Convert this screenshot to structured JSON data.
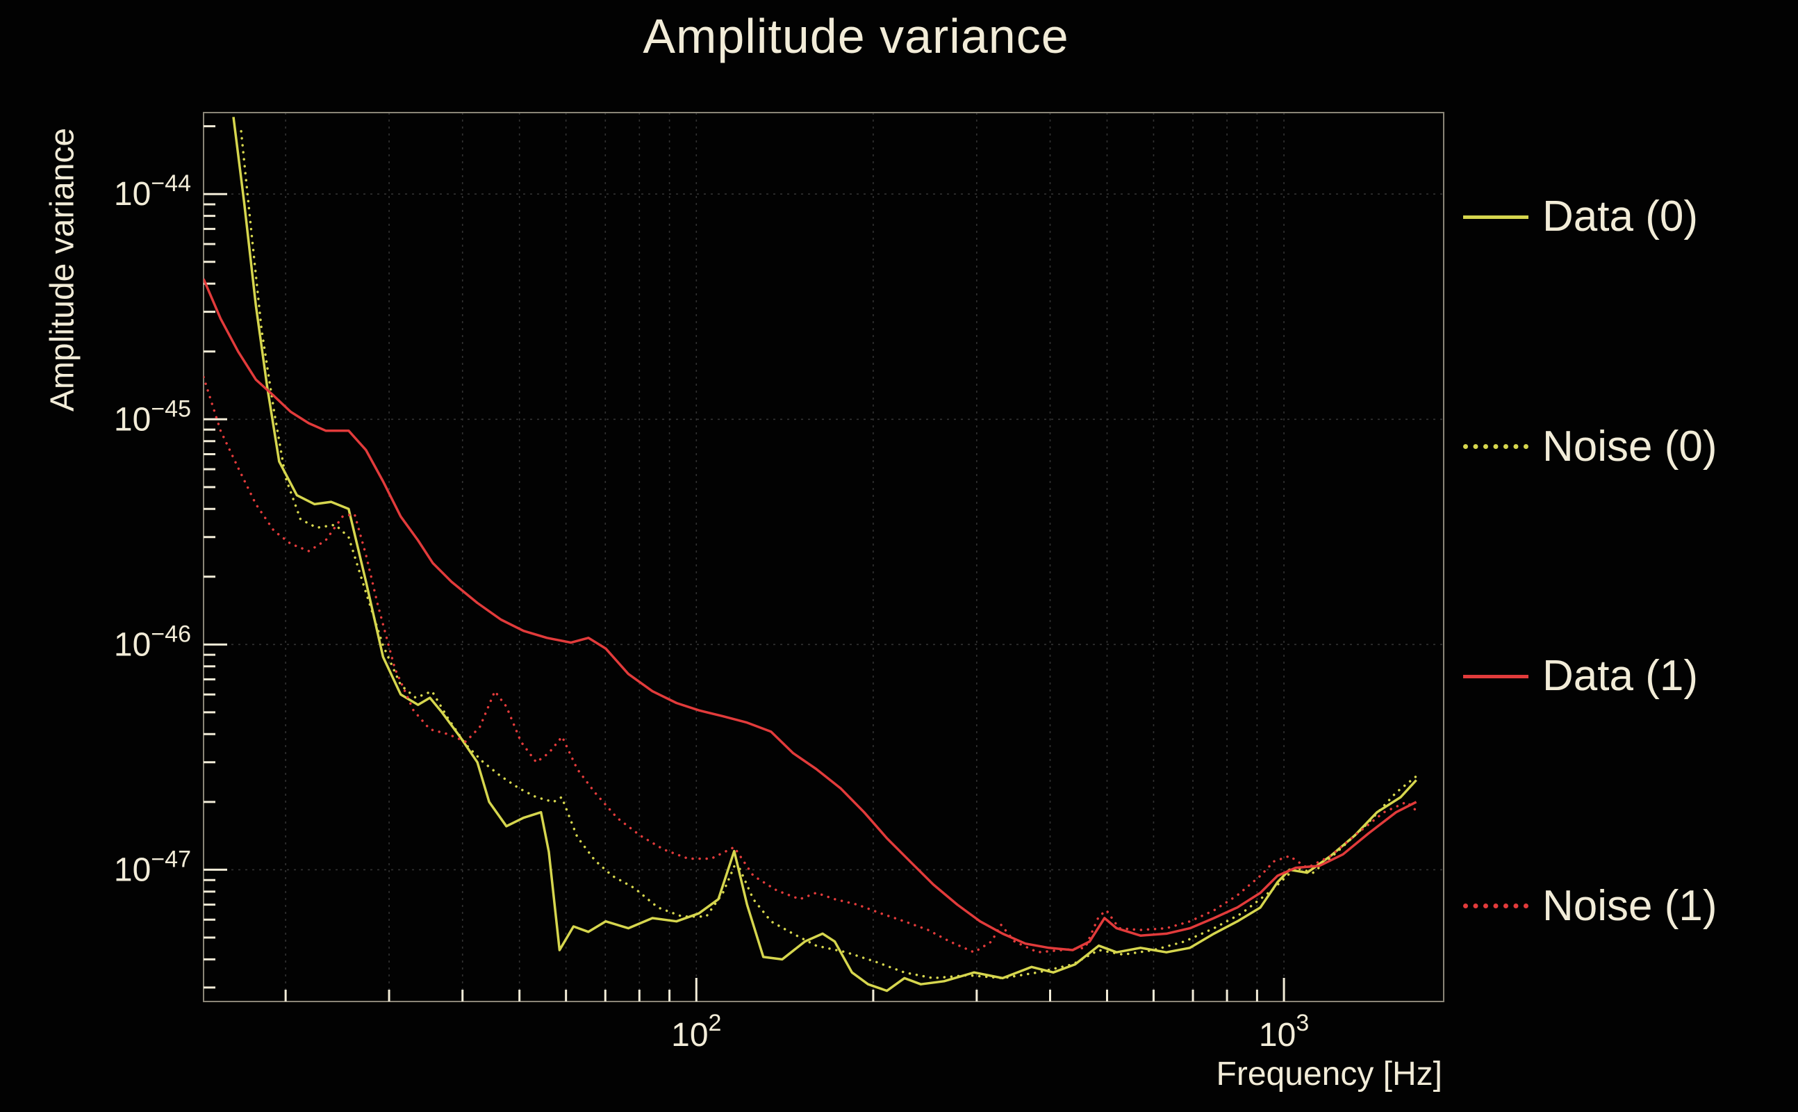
{
  "chart_data": {
    "type": "line",
    "title": "Amplitude variance",
    "xlabel": "Frequency [Hz]",
    "ylabel": "Amplitude variance",
    "x_scale": "log",
    "y_scale": "log",
    "xlim": [
      14.5,
      1870
    ],
    "ylim": [
      2.6e-48,
      2.3e-44
    ],
    "grid": true,
    "legend_position": "right-outside",
    "background_color": "#020202",
    "text_color": "#f2ecd8",
    "grid_color": "#3c3c3c",
    "frame_color": "#8a8577",
    "x_ticks": [
      {
        "v": 100,
        "exp": "2"
      },
      {
        "v": 1000,
        "exp": "3"
      }
    ],
    "y_ticks": [
      {
        "v": 1e-44,
        "exp": "−44"
      },
      {
        "v": 1e-45,
        "exp": "−45"
      },
      {
        "v": 1e-46,
        "exp": "−46"
      },
      {
        "v": 1e-47,
        "exp": "−47"
      }
    ],
    "series": [
      {
        "name": "Data (0)",
        "color": "#d6d64e",
        "style": "solid",
        "points": [
          [
            16.3,
            2.2e-44
          ],
          [
            17.0,
            9.2e-45
          ],
          [
            17.8,
            3.2e-45
          ],
          [
            18.6,
            1.4e-45
          ],
          [
            19.5,
            6.5e-46
          ],
          [
            20.9,
            4.6e-46
          ],
          [
            22.4,
            4.2e-46
          ],
          [
            23.9,
            4.3e-46
          ],
          [
            25.6,
            4e-46
          ],
          [
            27.4,
            1.9e-46
          ],
          [
            29.3,
            8.8e-47
          ],
          [
            31.4,
            6e-47
          ],
          [
            33.6,
            5.4e-47
          ],
          [
            35.2,
            5.8e-47
          ],
          [
            36.9,
            5e-47
          ],
          [
            39.6,
            3.9e-47
          ],
          [
            42.4,
            3e-47
          ],
          [
            44.4,
            2e-47
          ],
          [
            47.5,
            1.56e-47
          ],
          [
            50.8,
            1.7e-47
          ],
          [
            54.4,
            1.8e-47
          ],
          [
            56.1,
            1.2e-47
          ],
          [
            58.5,
            4.4e-48
          ],
          [
            61.8,
            5.6e-48
          ],
          [
            65.5,
            5.3e-48
          ],
          [
            70.1,
            5.9e-48
          ],
          [
            76.6,
            5.5e-48
          ],
          [
            84.2,
            6.1e-48
          ],
          [
            92.5,
            5.9e-48
          ],
          [
            101,
            6.4e-48
          ],
          [
            109,
            7.4e-48
          ],
          [
            116,
            1.21e-47
          ],
          [
            122,
            7e-48
          ],
          [
            130,
            4.1e-48
          ],
          [
            140,
            4e-48
          ],
          [
            153,
            4.8e-48
          ],
          [
            164,
            5.2e-48
          ],
          [
            172,
            4.8e-48
          ],
          [
            184,
            3.5e-48
          ],
          [
            196,
            3.1e-48
          ],
          [
            211,
            2.9e-48
          ],
          [
            226,
            3.3e-48
          ],
          [
            241,
            3.1e-48
          ],
          [
            264,
            3.2e-48
          ],
          [
            297,
            3.5e-48
          ],
          [
            332,
            3.3e-48
          ],
          [
            372,
            3.7e-48
          ],
          [
            405,
            3.5e-48
          ],
          [
            441,
            3.8e-48
          ],
          [
            484,
            4.6e-48
          ],
          [
            519,
            4.3e-48
          ],
          [
            570,
            4.5e-48
          ],
          [
            631,
            4.3e-48
          ],
          [
            692,
            4.5e-48
          ],
          [
            760,
            5.2e-48
          ],
          [
            833,
            5.9e-48
          ],
          [
            912,
            6.8e-48
          ],
          [
            975,
            8.8e-48
          ],
          [
            1022,
            1e-47
          ],
          [
            1095,
            9.7e-48
          ],
          [
            1200,
            1.15e-47
          ],
          [
            1320,
            1.42e-47
          ],
          [
            1440,
            1.8e-47
          ],
          [
            1580,
            2.1e-47
          ],
          [
            1680,
            2.5e-47
          ]
        ]
      },
      {
        "name": "Noise (0)",
        "color": "#d6d64e",
        "style": "dotted",
        "points": [
          [
            16.8,
            1.9e-44
          ],
          [
            17.4,
            7.7e-45
          ],
          [
            18.2,
            2.5e-45
          ],
          [
            19.1,
            1.1e-45
          ],
          [
            20.0,
            5.5e-46
          ],
          [
            21.2,
            3.6e-46
          ],
          [
            22.6,
            3.3e-46
          ],
          [
            24.3,
            3.4e-46
          ],
          [
            25.6,
            3e-46
          ],
          [
            27.4,
            1.7e-46
          ],
          [
            29.3,
            9.9e-47
          ],
          [
            31.4,
            6.6e-47
          ],
          [
            33.3,
            5.8e-47
          ],
          [
            35.5,
            6.2e-47
          ],
          [
            37.8,
            4.7e-47
          ],
          [
            40.5,
            3.6e-47
          ],
          [
            43.4,
            3e-47
          ],
          [
            46.5,
            2.6e-47
          ],
          [
            49.9,
            2.3e-47
          ],
          [
            53.4,
            2.1e-47
          ],
          [
            57.1,
            2e-47
          ],
          [
            59.0,
            2.1e-47
          ],
          [
            62.7,
            1.4e-47
          ],
          [
            67.2,
            1.1e-47
          ],
          [
            71.9,
            9.4e-48
          ],
          [
            78.4,
            8.3e-48
          ],
          [
            86.0,
            6.8e-48
          ],
          [
            94.6,
            6.2e-48
          ],
          [
            104,
            6.2e-48
          ],
          [
            111,
            7.9e-48
          ],
          [
            117,
            1.09e-47
          ],
          [
            125,
            7.4e-48
          ],
          [
            134,
            5.9e-48
          ],
          [
            146,
            5.2e-48
          ],
          [
            160,
            4.6e-48
          ],
          [
            180,
            4.3e-48
          ],
          [
            202,
            3.9e-48
          ],
          [
            226,
            3.5e-48
          ],
          [
            253,
            3.3e-48
          ],
          [
            290,
            3.4e-48
          ],
          [
            332,
            3.3e-48
          ],
          [
            381,
            3.5e-48
          ],
          [
            437,
            3.8e-48
          ],
          [
            484,
            4.4e-48
          ],
          [
            533,
            4.2e-48
          ],
          [
            600,
            4.4e-48
          ],
          [
            677,
            4.8e-48
          ],
          [
            760,
            5.5e-48
          ],
          [
            847,
            6.4e-48
          ],
          [
            953,
            8.1e-48
          ],
          [
            1047,
            1.02e-47
          ],
          [
            1121,
            9.7e-48
          ],
          [
            1228,
            1.19e-47
          ],
          [
            1386,
            1.6e-47
          ],
          [
            1552,
            2.2e-47
          ],
          [
            1680,
            2.6e-47
          ]
        ]
      },
      {
        "name": "Data (1)",
        "color": "#e23b3b",
        "style": "solid",
        "points": [
          [
            14.5,
            4.2e-45
          ],
          [
            15.5,
            2.8e-45
          ],
          [
            16.6,
            2e-45
          ],
          [
            17.8,
            1.5e-45
          ],
          [
            19.1,
            1.27e-45
          ],
          [
            20.4,
            1.08e-45
          ],
          [
            21.9,
            9.6e-46
          ],
          [
            23.4,
            8.9e-46
          ],
          [
            25.6,
            8.9e-46
          ],
          [
            27.4,
            7.3e-46
          ],
          [
            29.3,
            5.3e-46
          ],
          [
            31.4,
            3.7e-46
          ],
          [
            33.6,
            2.9e-46
          ],
          [
            35.6,
            2.3e-46
          ],
          [
            38.3,
            1.9e-46
          ],
          [
            42.4,
            1.53e-46
          ],
          [
            46.5,
            1.29e-46
          ],
          [
            50.8,
            1.15e-46
          ],
          [
            55.7,
            1.07e-46
          ],
          [
            61.2,
            1.02e-46
          ],
          [
            65.5,
            1.07e-46
          ],
          [
            70.1,
            9.6e-47
          ],
          [
            76.6,
            7.4e-47
          ],
          [
            84.2,
            6.2e-47
          ],
          [
            92.5,
            5.5e-47
          ],
          [
            101,
            5.1e-47
          ],
          [
            111,
            4.8e-47
          ],
          [
            122,
            4.5e-47
          ],
          [
            134,
            4.1e-47
          ],
          [
            146,
            3.3e-47
          ],
          [
            160,
            2.8e-47
          ],
          [
            176,
            2.3e-47
          ],
          [
            193,
            1.8e-47
          ],
          [
            211,
            1.38e-47
          ],
          [
            231,
            1.09e-47
          ],
          [
            253,
            8.6e-48
          ],
          [
            278,
            7e-48
          ],
          [
            304,
            5.9e-48
          ],
          [
            332,
            5.2e-48
          ],
          [
            363,
            4.7e-48
          ],
          [
            398,
            4.5e-48
          ],
          [
            437,
            4.4e-48
          ],
          [
            467,
            4.8e-48
          ],
          [
            495,
            6.1e-48
          ],
          [
            519,
            5.5e-48
          ],
          [
            570,
            5.1e-48
          ],
          [
            631,
            5.2e-48
          ],
          [
            692,
            5.5e-48
          ],
          [
            760,
            6.1e-48
          ],
          [
            833,
            6.8e-48
          ],
          [
            912,
            7.9e-48
          ],
          [
            975,
            9.4e-48
          ],
          [
            1047,
            1.02e-47
          ],
          [
            1148,
            1.04e-47
          ],
          [
            1260,
            1.17e-47
          ],
          [
            1393,
            1.45e-47
          ],
          [
            1552,
            1.8e-47
          ],
          [
            1680,
            2e-47
          ]
        ]
      },
      {
        "name": "Noise (1)",
        "color": "#e23b3b",
        "style": "dotted",
        "points": [
          [
            14.5,
            1.54e-45
          ],
          [
            15.5,
            8.9e-46
          ],
          [
            16.6,
            6.1e-46
          ],
          [
            17.8,
            4.2e-46
          ],
          [
            19.1,
            3.2e-46
          ],
          [
            20.4,
            2.8e-46
          ],
          [
            21.9,
            2.6e-46
          ],
          [
            23.4,
            2.9e-46
          ],
          [
            25.0,
            3.7e-46
          ],
          [
            26.2,
            3.8e-46
          ],
          [
            27.4,
            2.5e-46
          ],
          [
            28.7,
            1.5e-46
          ],
          [
            30.7,
            7.8e-47
          ],
          [
            33.0,
            5.1e-47
          ],
          [
            35.2,
            4.2e-47
          ],
          [
            37.8,
            4e-47
          ],
          [
            40.5,
            3.7e-47
          ],
          [
            42.8,
            4.3e-47
          ],
          [
            45.4,
            6.2e-47
          ],
          [
            47.5,
            5.3e-47
          ],
          [
            50.3,
            3.7e-47
          ],
          [
            53.4,
            3e-47
          ],
          [
            56.1,
            3.3e-47
          ],
          [
            59.1,
            3.9e-47
          ],
          [
            62.7,
            2.8e-47
          ],
          [
            67.2,
            2.2e-47
          ],
          [
            73.3,
            1.7e-47
          ],
          [
            80.2,
            1.42e-47
          ],
          [
            88.0,
            1.23e-47
          ],
          [
            96.9,
            1.12e-47
          ],
          [
            106,
            1.12e-47
          ],
          [
            116,
            1.26e-47
          ],
          [
            125,
            9.4e-48
          ],
          [
            137,
            8.1e-48
          ],
          [
            150,
            7.4e-48
          ],
          [
            160,
            7.9e-48
          ],
          [
            172,
            7.4e-48
          ],
          [
            188,
            7e-48
          ],
          [
            206,
            6.4e-48
          ],
          [
            226,
            5.9e-48
          ],
          [
            248,
            5.4e-48
          ],
          [
            270,
            4.8e-48
          ],
          [
            297,
            4.3e-48
          ],
          [
            318,
            4.8e-48
          ],
          [
            330,
            5.7e-48
          ],
          [
            348,
            4.8e-48
          ],
          [
            381,
            4.3e-48
          ],
          [
            419,
            4.4e-48
          ],
          [
            459,
            4.5e-48
          ],
          [
            484,
            6.2e-48
          ],
          [
            499,
            6.6e-48
          ],
          [
            524,
            5.5e-48
          ],
          [
            570,
            5.4e-48
          ],
          [
            631,
            5.5e-48
          ],
          [
            692,
            5.9e-48
          ],
          [
            760,
            6.6e-48
          ],
          [
            833,
            7.7e-48
          ],
          [
            912,
            9.4e-48
          ],
          [
            962,
            1.09e-47
          ],
          [
            1022,
            1.15e-47
          ],
          [
            1095,
            1.02e-47
          ],
          [
            1200,
            1.15e-47
          ],
          [
            1333,
            1.45e-47
          ],
          [
            1480,
            1.8e-47
          ],
          [
            1617,
            2e-47
          ],
          [
            1680,
            1.83e-47
          ]
        ]
      }
    ]
  }
}
